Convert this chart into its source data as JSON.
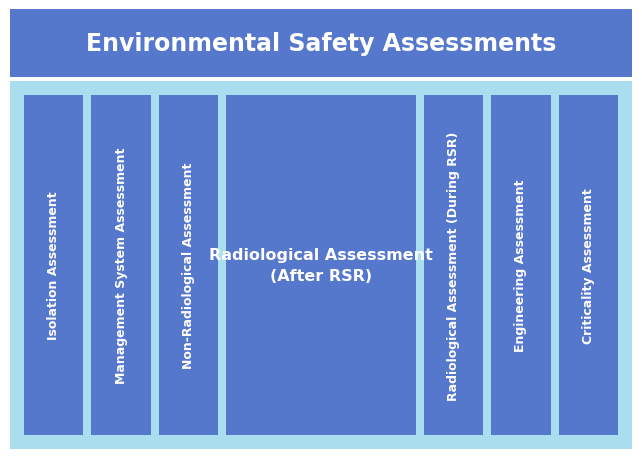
{
  "title": "Environmental Safety Assessments",
  "title_color": "#FFFFFF",
  "title_bg_color": "#5577CC",
  "body_bg_color": "#AADDEE",
  "bar_color": "#5577CC",
  "bar_text_color": "#FFFFFF",
  "fig_bg_color": "#FFFFFF",
  "columns": [
    {
      "label": "Isolation Assessment",
      "wide": false
    },
    {
      "label": "Management System Assessment",
      "wide": false
    },
    {
      "label": "Non-Radiological Assessment",
      "wide": false
    },
    {
      "label": "Radiological Assessment\n(After RSR)",
      "wide": true
    },
    {
      "label": "Radiological Assessment (During RSR)",
      "wide": false
    },
    {
      "label": "Engineering Assessment",
      "wide": false
    },
    {
      "label": "Criticality Assessment",
      "wide": false
    }
  ],
  "figsize": [
    6.42,
    4.6
  ],
  "dpi": 100,
  "title_fontsize": 17,
  "bar_fontsize_narrow": 9.0,
  "bar_fontsize_wide": 11.5
}
